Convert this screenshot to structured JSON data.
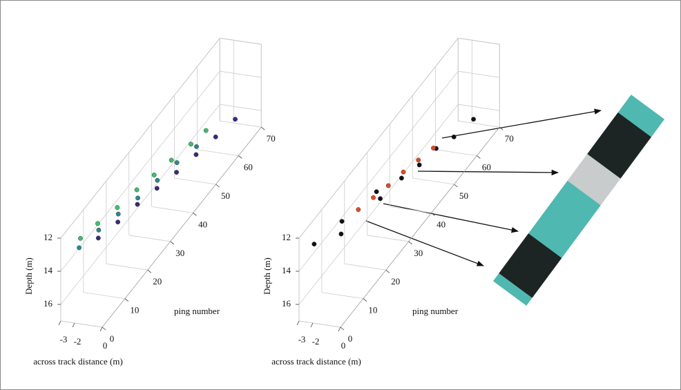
{
  "chart_data": [
    {
      "type": "scatter3d",
      "xlabel": "across track distance (m)",
      "ylabel": "ping number",
      "zlabel": "Depth (m)",
      "xlim": [
        -3,
        0
      ],
      "ylim": [
        0,
        70
      ],
      "zlim": [
        12,
        17
      ],
      "zreverse": true,
      "xticks": [
        -3,
        -2,
        0
      ],
      "yticks": [
        0,
        10,
        20,
        30,
        40,
        50,
        60,
        70
      ],
      "zticks": [
        12,
        14,
        16
      ],
      "grid": true,
      "series": [
        {
          "color": "#3cc06c",
          "x": [
            -2.4,
            -2.3,
            -2.2,
            -2.1,
            -2.0,
            -1.9,
            -1.8,
            -1.7
          ],
          "y": [
            5,
            12,
            20,
            28,
            35,
            42,
            50,
            56
          ],
          "z": [
            12.8,
            13.1,
            13.5,
            13.8,
            14.1,
            14.4,
            14.8,
            15.0
          ]
        },
        {
          "color": "#2a8a8a",
          "x": [
            -2.0,
            -1.9,
            -1.8,
            -1.7,
            -1.6,
            -1.5,
            -1.4
          ],
          "y": [
            2,
            10,
            18,
            26,
            34,
            42,
            50
          ],
          "z": [
            12.8,
            13.1,
            13.5,
            13.9,
            14.2,
            14.5,
            14.9
          ]
        },
        {
          "color": "#3b2a7a",
          "x": [
            -1.6,
            -1.5,
            -1.4,
            -1.3,
            -1.2,
            -1.1,
            -1.0,
            -0.9
          ],
          "y": [
            8,
            16,
            24,
            32,
            40,
            48,
            56,
            64
          ],
          "z": [
            13.2,
            13.6,
            13.9,
            14.3,
            14.7,
            15.0,
            15.3,
            15.6
          ]
        }
      ]
    },
    {
      "type": "scatter3d",
      "xlabel": "across track distance (m)",
      "ylabel": "ping number",
      "zlabel": "Depth (m)",
      "xlim": [
        -3,
        0
      ],
      "ylim": [
        0,
        70
      ],
      "zlim": [
        12,
        17
      ],
      "zreverse": true,
      "xticks": [
        -3,
        -2,
        0
      ],
      "yticks": [
        0,
        10,
        20,
        30,
        40,
        50,
        60,
        70
      ],
      "zticks": [
        12,
        14,
        16
      ],
      "grid": true,
      "series": [
        {
          "color": "#111111",
          "x": [
            -2.4,
            -2.2,
            -2.0,
            -1.6,
            -1.4,
            -1.2,
            -1.0,
            -0.9,
            -1.5,
            -1.3
          ],
          "y": [
            3,
            14,
            28,
            10,
            26,
            42,
            56,
            64,
            36,
            50
          ],
          "z": [
            12.8,
            13.3,
            13.9,
            13.3,
            13.9,
            14.6,
            15.3,
            15.6,
            14.4,
            15.0
          ]
        },
        {
          "color": "#e04a26",
          "x": [
            -2.0,
            -1.9,
            -1.8,
            -1.7,
            -1.6,
            -1.5
          ],
          "y": [
            20,
            26,
            32,
            38,
            44,
            50
          ],
          "z": [
            13.6,
            13.9,
            14.2,
            14.4,
            14.7,
            15.0
          ]
        }
      ]
    }
  ]
}
